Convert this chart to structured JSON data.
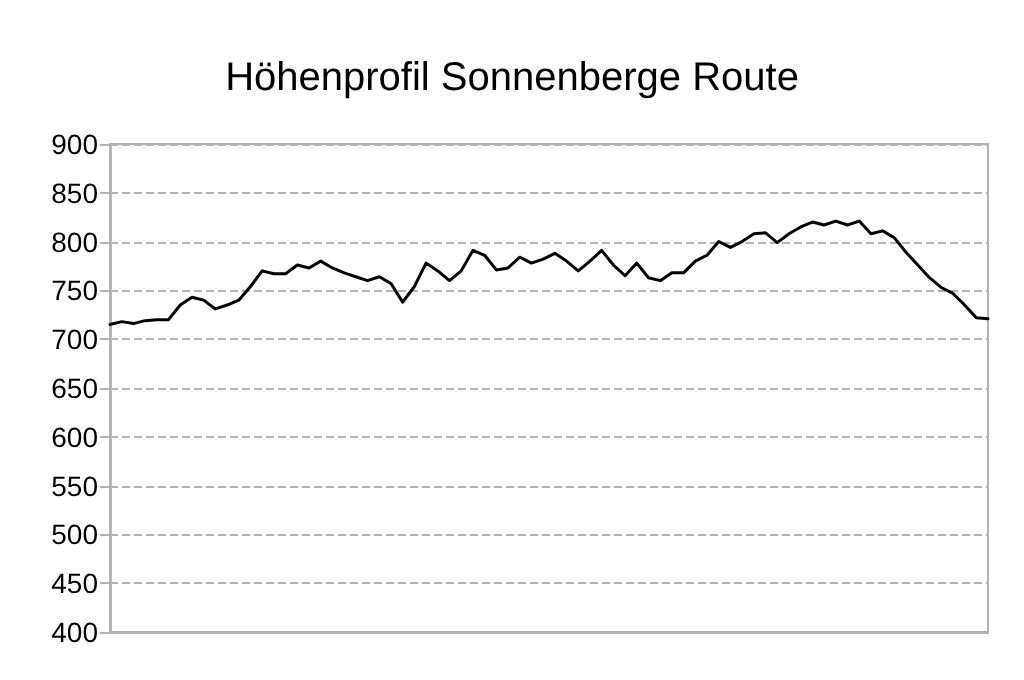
{
  "chart_data": {
    "type": "line",
    "title": "Höhenprofil Sonnenberge Route",
    "categories": [
      null,
      null,
      null,
      null,
      null,
      null,
      null,
      null,
      null,
      null,
      null,
      null,
      null,
      null,
      null,
      null,
      null,
      null,
      null,
      null,
      null,
      null,
      null,
      null,
      null,
      null,
      null,
      null,
      null,
      null,
      null,
      null,
      null,
      null,
      null,
      null,
      null,
      null,
      null,
      null,
      null,
      null,
      null,
      null,
      null,
      null,
      null,
      null,
      null,
      null,
      null,
      null,
      null,
      null,
      null,
      null,
      null,
      null,
      null,
      null,
      null,
      null,
      null,
      null,
      null,
      null,
      null,
      null,
      null,
      null,
      null,
      null,
      null,
      null,
      null,
      null
    ],
    "series": [
      {
        "color": "#000000",
        "values": [
          715,
          718,
          716,
          719,
          720,
          720,
          735,
          743,
          740,
          731,
          735,
          740,
          754,
          770,
          767,
          767,
          776,
          773,
          780,
          773,
          768,
          764,
          760,
          764,
          757,
          738,
          754,
          778,
          770,
          760,
          770,
          791,
          786,
          771,
          773,
          784,
          778,
          782,
          788,
          780,
          770,
          780,
          791,
          776,
          765,
          778,
          763,
          760,
          768,
          768,
          780,
          786,
          800,
          794,
          800,
          808,
          809,
          799,
          808,
          815,
          820,
          817,
          821,
          817,
          821,
          808,
          811,
          804,
          789,
          776,
          763,
          753,
          747,
          735,
          722,
          721
        ]
      }
    ],
    "ylim": [
      400,
      900
    ],
    "yticks": [
      400,
      450,
      500,
      550,
      600,
      650,
      700,
      750,
      800,
      850,
      900
    ],
    "grid": "y",
    "tick_labels": "y",
    "line_style": "solid"
  }
}
